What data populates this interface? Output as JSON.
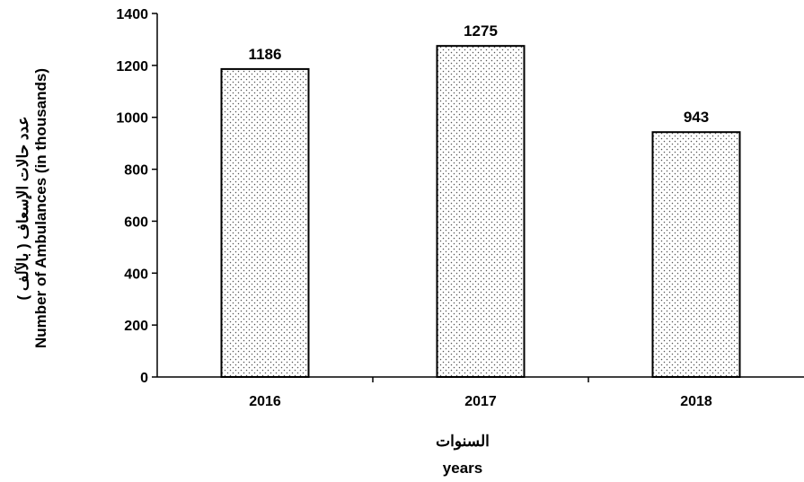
{
  "chart_data": {
    "type": "bar",
    "categories": [
      "2016",
      "2017",
      "2018"
    ],
    "values": [
      1186,
      1275,
      943
    ],
    "data_labels": [
      "1186",
      "1275",
      "943"
    ],
    "title": "",
    "xlabel_ar": "السنوات",
    "xlabel_en": "years",
    "ylabel_ar": "عدد حالات الإسعاف ( بالآلف )",
    "ylabel_en": "Number of Ambulances (in thousands)",
    "ylim": [
      0,
      1400
    ],
    "yticks": [
      0,
      200,
      400,
      600,
      800,
      1000,
      1200,
      1400
    ],
    "ytick_labels": [
      "0",
      "200",
      "400",
      "600",
      "800",
      "1000",
      "1200",
      "1400"
    ],
    "grid": false,
    "legend": "none",
    "bar_fill": "dotted pattern",
    "colors": {
      "bar_stroke": "#000000",
      "dot": "#555555",
      "background": "#ffffff"
    }
  }
}
